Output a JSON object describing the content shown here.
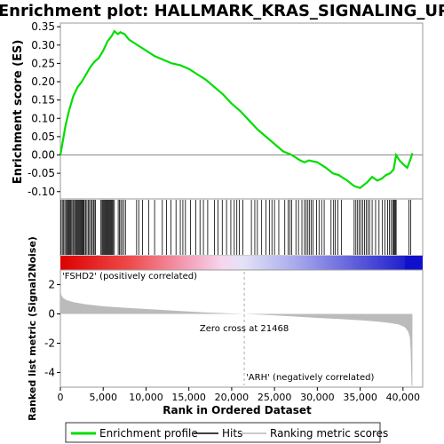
{
  "chart_data": {
    "type": "line",
    "title": "Enrichment plot: HALLMARK_KRAS_SIGNALING_UP",
    "es_panel": {
      "ylabel": "Enrichment score (ES)",
      "ylim": [
        -0.12,
        0.36
      ],
      "yticks": [
        -0.1,
        -0.05,
        0.0,
        0.05,
        0.1,
        0.15,
        0.2,
        0.25,
        0.3,
        0.35
      ],
      "ytick_labels": [
        "-0.10",
        "-0.05",
        "0.00",
        "0.05",
        "0.10",
        "0.15",
        "0.20",
        "0.25",
        "0.30",
        "0.35"
      ],
      "series": [
        {
          "name": "Enrichment profile",
          "color": "#00dd00",
          "x": [
            0,
            300,
            600,
            1000,
            1500,
            2000,
            2500,
            3000,
            3500,
            4000,
            4500,
            5000,
            5500,
            6000,
            6300,
            6700,
            7000,
            7500,
            8000,
            9000,
            10000,
            11000,
            12000,
            13000,
            14000,
            15000,
            16000,
            17000,
            18000,
            19000,
            20000,
            21000,
            22000,
            23000,
            24000,
            25000,
            26000,
            27000,
            28000,
            28500,
            29000,
            30000,
            31000,
            31800,
            32500,
            33500,
            34300,
            35000,
            35800,
            36400,
            37000,
            37500,
            38000,
            38500,
            38900,
            39200,
            39600,
            40000,
            40500,
            40900,
            41100
          ],
          "y": [
            0.0,
            0.04,
            0.08,
            0.12,
            0.16,
            0.185,
            0.2,
            0.22,
            0.24,
            0.255,
            0.265,
            0.285,
            0.31,
            0.325,
            0.338,
            0.33,
            0.335,
            0.33,
            0.315,
            0.3,
            0.285,
            0.27,
            0.26,
            0.25,
            0.245,
            0.235,
            0.22,
            0.205,
            0.185,
            0.165,
            0.14,
            0.12,
            0.095,
            0.07,
            0.05,
            0.03,
            0.01,
            0.0,
            -0.015,
            -0.02,
            -0.015,
            -0.02,
            -0.035,
            -0.05,
            -0.055,
            -0.07,
            -0.085,
            -0.09,
            -0.075,
            -0.06,
            -0.07,
            -0.065,
            -0.055,
            -0.05,
            -0.04,
            0.0,
            -0.015,
            -0.025,
            -0.035,
            -0.01,
            0.005
          ]
        }
      ]
    },
    "hits_panel": {
      "series_name": "Hits",
      "hit_ranks": [
        80,
        230,
        380,
        520,
        650,
        760,
        880,
        990,
        1100,
        1200,
        1320,
        1450,
        1560,
        1680,
        1800,
        1900,
        2000,
        2100,
        2200,
        2300,
        2400,
        2500,
        2600,
        2700,
        2800,
        2950,
        3100,
        3250,
        3400,
        3550,
        3700,
        3850,
        3950,
        4100,
        4700,
        4850,
        4950,
        5050,
        5150,
        5250,
        5350,
        5450,
        5550,
        5650,
        5750,
        5850,
        5950,
        6050,
        6150,
        6300,
        6750,
        6900,
        7050,
        7200,
        7400,
        7600,
        8900,
        9150,
        9600,
        10300,
        11000,
        11900,
        12400,
        12900,
        13500,
        14000,
        14300,
        14600,
        15200,
        15800,
        16300,
        16700,
        17200,
        18000,
        18400,
        18900,
        19400,
        19900,
        20300,
        20600,
        20900,
        21300,
        22300,
        22700,
        23000,
        23500,
        24000,
        24400,
        24700,
        25000,
        25500,
        26200,
        26600,
        26800,
        27000,
        27500,
        27800,
        28200,
        28500,
        28700,
        28900,
        29100,
        29300,
        29500,
        29900,
        30200,
        30500,
        30800,
        31600,
        31900,
        32100,
        32400,
        32800,
        34300,
        34500,
        34700,
        34900,
        35100,
        35300,
        35500,
        35700,
        35900,
        36100,
        36400,
        36800,
        37200,
        37600,
        37900,
        38200,
        38400,
        38600,
        38800,
        38900,
        39000,
        39100,
        39200,
        40700,
        40900
      ]
    },
    "metric_panel": {
      "ylabel": "Ranked list metric (Signal2Noise)",
      "ylim": [
        -5,
        3
      ],
      "yticks": [
        -4,
        -2,
        0,
        2
      ],
      "ytick_labels": [
        "-4",
        "-2",
        "0",
        "2"
      ],
      "series_name": "Ranking metric scores",
      "x": [
        0,
        100,
        300,
        700,
        1500,
        3000,
        5000,
        8000,
        11000,
        14000,
        17000,
        20000,
        21468,
        24000,
        27000,
        30000,
        33000,
        35000,
        37000,
        38500,
        39500,
        40200,
        40600,
        40800,
        40900,
        41000,
        41100
      ],
      "y": [
        2.0,
        1.3,
        1.1,
        0.95,
        0.8,
        0.65,
        0.52,
        0.4,
        0.3,
        0.2,
        0.1,
        0.03,
        0.0,
        -0.07,
        -0.17,
        -0.27,
        -0.36,
        -0.43,
        -0.52,
        -0.62,
        -0.72,
        -0.9,
        -1.2,
        -1.6,
        -2.5,
        -4.9,
        -4.9
      ],
      "zero_cross_label": "Zero cross at 21468",
      "zero_cross": 21468,
      "pos_label": "'FSHD2' (positively correlated)",
      "neg_label": "'ARH' (negatively correlated)"
    },
    "xlabel": "Rank in Ordered Dataset",
    "xlim": [
      0,
      42300
    ],
    "xticks": [
      0,
      5000,
      10000,
      15000,
      20000,
      25000,
      30000,
      35000,
      40000
    ],
    "xtick_labels": [
      "0",
      "5,000",
      "10,000",
      "15,000",
      "20,000",
      "25,000",
      "30,000",
      "35,000",
      "40,000"
    ],
    "legend": {
      "placement": "bottom",
      "entries": [
        "Enrichment profile",
        "Hits",
        "Ranking metric scores"
      ]
    },
    "colors": {
      "profile": "#00dd00",
      "hits": "#000000",
      "metric_fill": "#bbbbbb",
      "pos_label": "#cc0000",
      "neg_label": "#0000cc"
    }
  }
}
